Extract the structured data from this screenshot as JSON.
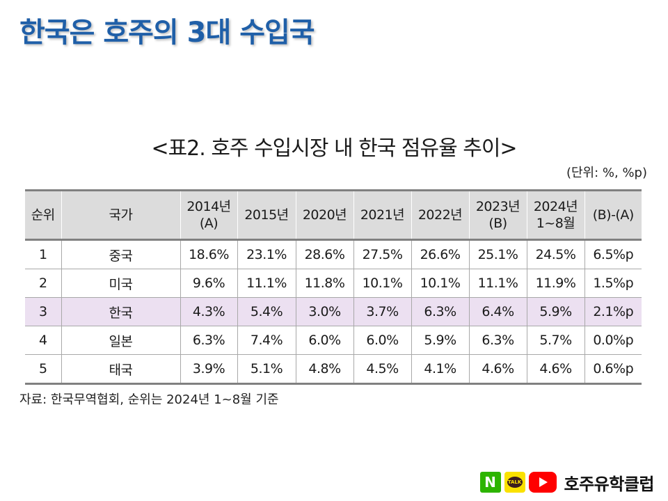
{
  "slide_title": "한국은 호주의 3대 수입국",
  "table_caption": "<표2. 호주 수입시장 내 한국 점유율 추이>",
  "unit_note": "(단위: %, %p)",
  "table": {
    "headers": [
      {
        "line1": "순위",
        "line2": ""
      },
      {
        "line1": "국가",
        "line2": ""
      },
      {
        "line1": "2014년",
        "line2": "(A)"
      },
      {
        "line1": "2015년",
        "line2": ""
      },
      {
        "line1": "2020년",
        "line2": ""
      },
      {
        "line1": "2021년",
        "line2": ""
      },
      {
        "line1": "2022년",
        "line2": ""
      },
      {
        "line1": "2023년",
        "line2": "(B)"
      },
      {
        "line1": "2024년",
        "line2": "1~8월"
      },
      {
        "line1": "(B)-(A)",
        "line2": ""
      }
    ],
    "rows": [
      [
        "1",
        "중국",
        "18.6%",
        "23.1%",
        "28.6%",
        "27.5%",
        "26.6%",
        "25.1%",
        "24.5%",
        "6.5%p"
      ],
      [
        "2",
        "미국",
        "9.6%",
        "11.1%",
        "11.8%",
        "10.1%",
        "10.1%",
        "11.1%",
        "11.9%",
        "1.5%p"
      ],
      [
        "3",
        "한국",
        "4.3%",
        "5.4%",
        "3.0%",
        "3.7%",
        "6.3%",
        "6.4%",
        "5.9%",
        "2.1%p"
      ],
      [
        "4",
        "일본",
        "6.3%",
        "7.4%",
        "6.0%",
        "6.0%",
        "5.9%",
        "6.3%",
        "5.7%",
        "0.0%p"
      ],
      [
        "5",
        "태국",
        "3.9%",
        "5.1%",
        "4.8%",
        "4.5%",
        "4.1%",
        "4.6%",
        "4.6%",
        "0.6%p"
      ]
    ],
    "highlight_row_index": 2,
    "highlight_color": "#ece0f1"
  },
  "source_note": "자료: 한국무역협회, 순위는 2024년 1~8월 기준",
  "brand": {
    "naver_letter": "N",
    "kakao_label": "TALK",
    "name": "호주유학클럽",
    "icons": [
      "naver-icon",
      "kakaotalk-icon",
      "youtube-icon"
    ]
  }
}
